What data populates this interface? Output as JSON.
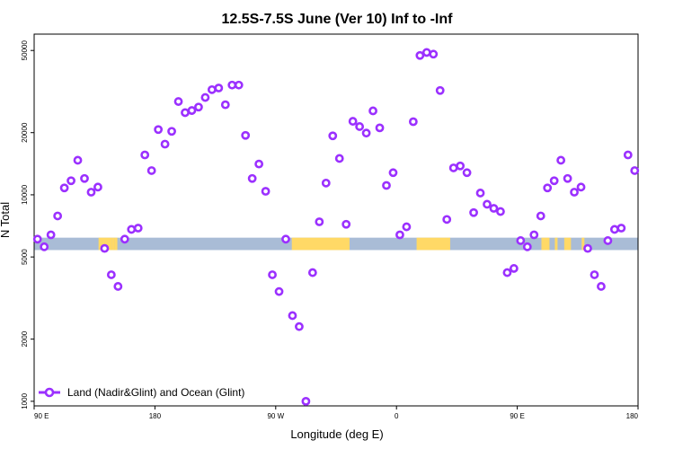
{
  "chart_data": {
    "type": "scatter",
    "title": "12.5S-7.5S June (Ver 10)   Inf to -Inf",
    "xlabel": "Longitude (deg E)",
    "ylabel": "N Total",
    "y_scale": "log",
    "xlim": [
      90,
      540
    ],
    "ylim": [
      950,
      60000
    ],
    "grid": false,
    "legend_position": "bottom-left",
    "x_tick_values": [
      90,
      180,
      270,
      360,
      450,
      540
    ],
    "x_tick_labels": [
      "90 E",
      "180",
      "90 W",
      "0",
      "90 E",
      "180"
    ],
    "y_tick_values": [
      1000,
      2000,
      5000,
      10000,
      20000,
      50000
    ],
    "y_tick_labels": [
      "1000",
      "2000",
      "5000",
      "10000",
      "20000",
      "50000"
    ],
    "colors": {
      "marker": "#9b30ff",
      "ocean_band": "#a9bcd6",
      "land_band": "#ffd966",
      "axis": "#000000"
    },
    "surface_band": {
      "y_range": [
        5400,
        6200
      ],
      "land_segments": [
        [
          138,
          148
        ],
        [
          150,
          152
        ],
        [
          148,
          150
        ],
        [
          282,
          325
        ],
        [
          375,
          400
        ],
        [
          468,
          474
        ],
        [
          478,
          480
        ],
        [
          485,
          490
        ],
        [
          498,
          500
        ]
      ]
    },
    "series": [
      {
        "name": "Land (Nadir&Glint) and Ocean (Glint)",
        "marker": "open-circle",
        "x": [
          92.5,
          97.5,
          102.5,
          107.5,
          112.5,
          117.5,
          122.5,
          127.5,
          132.5,
          137.5,
          142.5,
          147.5,
          152.5,
          157.5,
          162.5,
          167.5,
          172.5,
          177.5,
          182.5,
          187.5,
          192.5,
          197.5,
          202.5,
          207.5,
          212.5,
          217.5,
          222.5,
          227.5,
          232.5,
          237.5,
          242.5,
          247.5,
          252.5,
          257.5,
          262.5,
          267.5,
          272.5,
          277.5,
          282.5,
          287.5,
          292.5,
          297.5,
          302.5,
          307.5,
          312.5,
          317.5,
          322.5,
          327.5,
          332.5,
          337.5,
          342.5,
          347.5,
          352.5,
          357.5,
          362.5,
          367.5,
          372.5,
          377.5,
          382.5,
          387.5,
          392.5,
          397.5,
          402.5,
          407.5,
          412.5,
          417.5,
          422.5,
          427.5,
          432.5,
          437.5,
          442.5,
          447.5,
          452.5,
          457.5,
          462.5,
          467.5,
          472.5,
          477.5,
          482.5,
          487.5,
          492.5,
          497.5,
          502.5,
          507.5,
          512.5,
          517.5,
          522.5,
          527.5,
          532.5,
          537.5
        ],
        "y": [
          6100,
          5600,
          6400,
          7900,
          10800,
          11700,
          14700,
          12000,
          10300,
          10900,
          5500,
          4100,
          3600,
          6100,
          6800,
          6900,
          15600,
          13100,
          20700,
          17600,
          20300,
          28300,
          25000,
          25600,
          26600,
          29600,
          32300,
          32900,
          27300,
          34000,
          34000,
          19400,
          12000,
          14100,
          10400,
          4100,
          3400,
          6100,
          2600,
          2300,
          1000,
          4200,
          7400,
          11400,
          19300,
          15000,
          7200,
          22700,
          21400,
          19900,
          25500,
          21100,
          11100,
          12800,
          6400,
          7000,
          22600,
          47300,
          48900,
          48000,
          32000,
          7600,
          13500,
          13800,
          12800,
          8200,
          10200,
          9000,
          8600,
          8300,
          4200,
          4400,
          6000,
          5600,
          6400,
          7900,
          10800,
          11700,
          14700,
          12000,
          10300,
          10900,
          5500,
          4100,
          3600,
          6000,
          6800,
          6900,
          15600,
          13100
        ]
      }
    ]
  }
}
